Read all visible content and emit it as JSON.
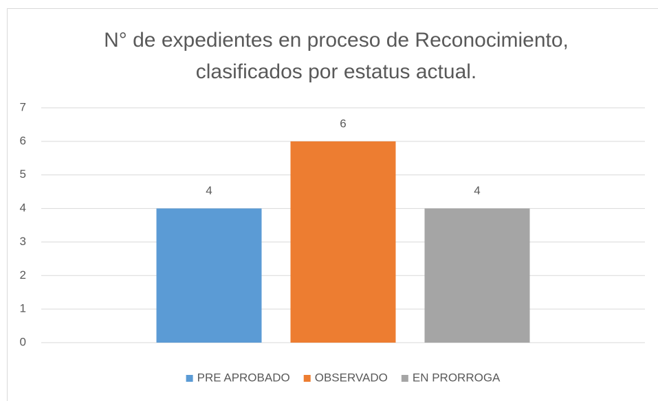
{
  "chart_data": {
    "type": "bar",
    "title": "N° de expedientes en proceso de Reconocimiento, clasificados por estatus actual.",
    "categories": [
      null
    ],
    "series": [
      {
        "name": "PRE APROBADO",
        "color": "#5b9bd5",
        "values": [
          4
        ]
      },
      {
        "name": "OBSERVADO",
        "color": "#ed7d31",
        "values": [
          6
        ]
      },
      {
        "name": "EN PRORROGA",
        "color": "#a5a5a5",
        "values": [
          4
        ]
      }
    ],
    "ylim": [
      0,
      7
    ],
    "yticks": [
      0,
      1,
      2,
      3,
      4,
      5,
      6,
      7
    ],
    "grid": true,
    "legend": "bottom",
    "data_labels": true
  }
}
